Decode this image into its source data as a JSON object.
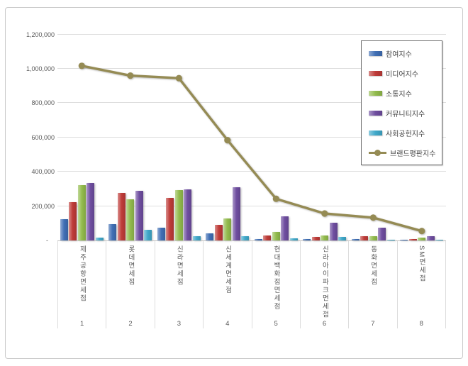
{
  "colors": {
    "participation": "#3f6eb4",
    "media": "#be3b38",
    "communication": "#92bb4c",
    "community": "#6e4d9f",
    "social": "#3fa8c9",
    "reputation_line": "#958b54",
    "gridline": "#dedede",
    "axis_text": "#595959",
    "legend_border": "#6e6e6e",
    "frame_border": "#c9c9c9"
  },
  "chart_data": {
    "type": "bar",
    "subtype": "grouped bars with overlay line series",
    "title": "",
    "xlabel": "",
    "ylabel": "",
    "grid": true,
    "legend_position": "top-right",
    "categories": [
      "제주공항면세점",
      "롯데면세점",
      "신라면세점",
      "신세계면세점",
      "현대백화점면세점",
      "신라아이파크면세점",
      "동화면세점",
      "SM면세점"
    ],
    "ranks": [
      "1",
      "2",
      "3",
      "4",
      "5",
      "6",
      "7",
      "8"
    ],
    "series": [
      {
        "key": "participation",
        "name": "참여지수",
        "type": "bar",
        "color": "#3f6eb4",
        "values": [
          122000,
          95000,
          74000,
          40000,
          10000,
          9000,
          9000,
          5000
        ]
      },
      {
        "key": "media",
        "name": "미디어지수",
        "type": "bar",
        "color": "#be3b38",
        "values": [
          225000,
          277000,
          249000,
          93000,
          30000,
          22000,
          26000,
          8000
        ]
      },
      {
        "key": "communication",
        "name": "소통지수",
        "type": "bar",
        "color": "#92bb4c",
        "values": [
          322000,
          240000,
          295000,
          127000,
          51000,
          27000,
          23000,
          18000
        ]
      },
      {
        "key": "community",
        "name": "커뮤니티지수",
        "type": "bar",
        "color": "#6e4d9f",
        "values": [
          333000,
          291000,
          297000,
          311000,
          140000,
          103000,
          76000,
          26000
        ]
      },
      {
        "key": "social",
        "name": "사회공헌지수",
        "type": "bar",
        "color": "#3fa8c9",
        "values": [
          16000,
          61000,
          24000,
          26000,
          14000,
          19000,
          6000,
          4000
        ]
      },
      {
        "key": "reputation",
        "name": "브랜드평판지수",
        "type": "line",
        "color": "#958b54",
        "values": [
          1017000,
          960000,
          945000,
          584000,
          243000,
          157000,
          133000,
          55000
        ]
      }
    ],
    "y_axis": {
      "ticks": [
        "-",
        "200,000",
        "400,000",
        "600,000",
        "800,000",
        "1,000,000",
        "1,200,000"
      ],
      "tick_values": [
        0,
        200000,
        400000,
        600000,
        800000,
        1000000,
        1200000
      ],
      "ylim": [
        0,
        1262000
      ]
    }
  }
}
